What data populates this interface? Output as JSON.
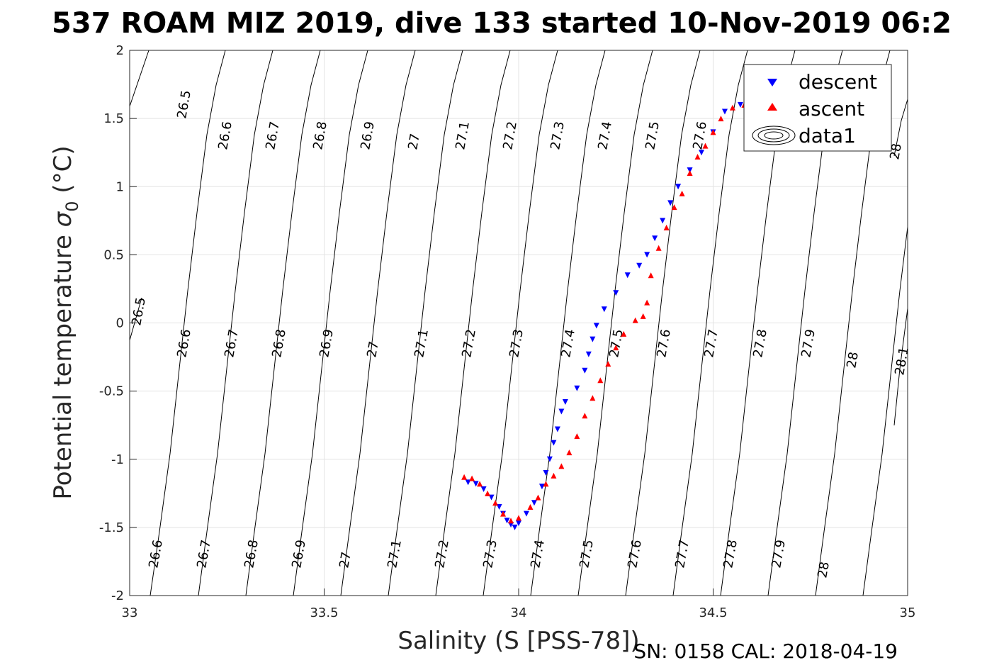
{
  "chart_data": {
    "type": "scatter",
    "title": "537 ROAM MIZ 2019, dive 133 started 10-Nov-2019 06:2",
    "xlabel": "Salinity (S [PSS-78])",
    "ylabel_main": "Potential temperature ",
    "ylabel_sigma": "σ",
    "ylabel_sub": "0",
    "ylabel_units": " (°C)",
    "xlim": [
      33,
      35
    ],
    "ylim": [
      -2,
      2
    ],
    "xticks": [
      "33",
      "33.5",
      "34",
      "34.5",
      "35"
    ],
    "yticks": [
      "-2",
      "-1.5",
      "-1",
      "-0.5",
      "0",
      "0.5",
      "1",
      "1.5",
      "2"
    ],
    "grid": true,
    "legend_position": "top-right",
    "legend": [
      "descent",
      "ascent",
      "data1"
    ],
    "series": [
      {
        "name": "descent",
        "color": "#0000ff",
        "marker": "triangle-down",
        "points": [
          [
            33.87,
            -1.17
          ],
          [
            33.89,
            -1.18
          ],
          [
            33.91,
            -1.22
          ],
          [
            33.93,
            -1.28
          ],
          [
            33.95,
            -1.35
          ],
          [
            33.96,
            -1.4
          ],
          [
            33.97,
            -1.45
          ],
          [
            33.98,
            -1.48
          ],
          [
            33.99,
            -1.5
          ],
          [
            34.0,
            -1.47
          ],
          [
            34.02,
            -1.4
          ],
          [
            34.04,
            -1.32
          ],
          [
            34.06,
            -1.2
          ],
          [
            34.07,
            -1.1
          ],
          [
            34.08,
            -1.0
          ],
          [
            34.09,
            -0.88
          ],
          [
            34.1,
            -0.78
          ],
          [
            34.11,
            -0.65
          ],
          [
            34.12,
            -0.58
          ],
          [
            34.15,
            -0.48
          ],
          [
            34.17,
            -0.35
          ],
          [
            34.18,
            -0.23
          ],
          [
            34.19,
            -0.12
          ],
          [
            34.2,
            -0.02
          ],
          [
            34.22,
            0.1
          ],
          [
            34.25,
            0.22
          ],
          [
            34.28,
            0.35
          ],
          [
            34.31,
            0.42
          ],
          [
            34.33,
            0.5
          ],
          [
            34.35,
            0.62
          ],
          [
            34.37,
            0.75
          ],
          [
            34.39,
            0.88
          ],
          [
            34.41,
            1.0
          ],
          [
            34.44,
            1.12
          ],
          [
            34.47,
            1.25
          ],
          [
            34.5,
            1.4
          ],
          [
            34.53,
            1.55
          ],
          [
            34.57,
            1.6
          ],
          [
            34.6,
            1.62
          ],
          [
            34.62,
            1.67
          ]
        ]
      },
      {
        "name": "ascent",
        "color": "#ff0000",
        "marker": "triangle-up",
        "points": [
          [
            33.86,
            -1.13
          ],
          [
            33.88,
            -1.14
          ],
          [
            33.9,
            -1.18
          ],
          [
            33.92,
            -1.25
          ],
          [
            33.94,
            -1.32
          ],
          [
            33.96,
            -1.4
          ],
          [
            33.98,
            -1.45
          ],
          [
            34.0,
            -1.43
          ],
          [
            34.03,
            -1.35
          ],
          [
            34.05,
            -1.28
          ],
          [
            34.07,
            -1.18
          ],
          [
            34.09,
            -1.12
          ],
          [
            34.11,
            -1.05
          ],
          [
            34.13,
            -0.95
          ],
          [
            34.15,
            -0.83
          ],
          [
            34.17,
            -0.68
          ],
          [
            34.19,
            -0.55
          ],
          [
            34.21,
            -0.42
          ],
          [
            34.23,
            -0.3
          ],
          [
            34.25,
            -0.18
          ],
          [
            34.27,
            -0.08
          ],
          [
            34.3,
            0.02
          ],
          [
            34.32,
            0.05
          ],
          [
            34.33,
            0.15
          ],
          [
            34.34,
            0.35
          ],
          [
            34.36,
            0.55
          ],
          [
            34.38,
            0.7
          ],
          [
            34.4,
            0.85
          ],
          [
            34.42,
            0.95
          ],
          [
            34.44,
            1.1
          ],
          [
            34.46,
            1.22
          ],
          [
            34.48,
            1.3
          ],
          [
            34.5,
            1.4
          ],
          [
            34.52,
            1.5
          ],
          [
            34.55,
            1.58
          ],
          [
            34.58,
            1.6
          ],
          [
            34.6,
            1.63
          ],
          [
            34.63,
            1.7
          ],
          [
            34.66,
            1.68
          ],
          [
            34.68,
            1.6
          ],
          [
            34.7,
            1.45
          ],
          [
            34.72,
            1.3
          ]
        ]
      }
    ],
    "contour_levels": [
      "26.5",
      "26.6",
      "26.7",
      "26.8",
      "26.9",
      "27",
      "27.1",
      "27.2",
      "27.3",
      "27.4",
      "27.5",
      "27.6",
      "27.7",
      "27.8",
      "27.9",
      "28",
      "28.1"
    ]
  },
  "footer": {
    "serial": "SN: 0158  CAL: 2018-04-19"
  }
}
